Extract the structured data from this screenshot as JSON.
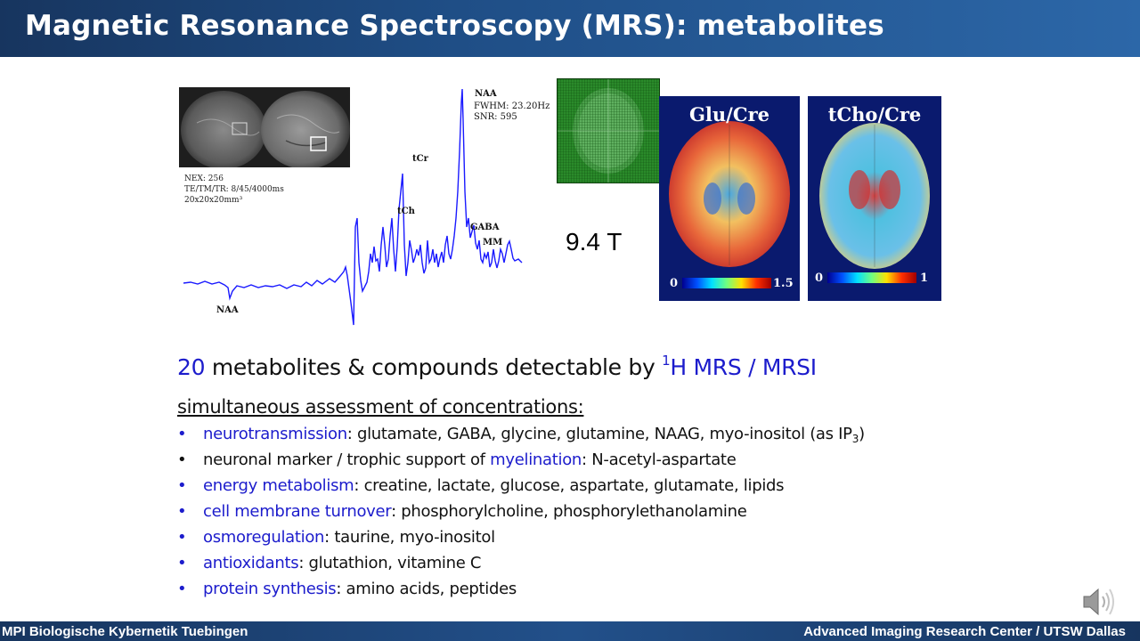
{
  "header": {
    "title": "Magnetic Resonance Spectroscopy (MRS): metabolites"
  },
  "footer": {
    "left": "MPI Biologische Kybernetik Tuebingen",
    "right": "Advanced Imaging Research Center / UTSW Dallas"
  },
  "spectrum": {
    "params": [
      "NEX: 256",
      "TE/TM/TR: 8/45/4000ms",
      "20x20x20mm³"
    ],
    "peak_labels": {
      "naa_top": "NAA",
      "tcr": "tCr",
      "tch": "tCh",
      "gaba": "GABA",
      "mm": "MM",
      "naa_bottom": "NAA"
    },
    "naa_info": [
      "FWHM: 23.20Hz",
      "SNR: 595"
    ]
  },
  "field_strength": "9.4 T",
  "maps": [
    {
      "title": "Glu/Cre",
      "min": "0",
      "max": "1.5"
    },
    {
      "title": "tCho/Cre",
      "min": "0",
      "max": "1"
    }
  ],
  "headline": {
    "count": "20",
    "text": " metabolites & compounds detectable by ",
    "sup": "1",
    "method": "H MRS / MRSI"
  },
  "subheading": "simultaneous assessment of concentrations:",
  "bullets": [
    {
      "term": "neurotransmission",
      "rest": ": glutamate, GABA, glycine, glutamine, NAAG, myo-inositol (as IP",
      "sub": "3",
      "tail": ")",
      "bullet_color": "#1c1ccc"
    },
    {
      "prefix": "neuronal marker / trophic support of ",
      "term": "myelination",
      "rest": ": N-acetyl-aspartate",
      "bullet_color": "#111111"
    },
    {
      "term": "energy metabolism",
      "rest": ": creatine, lactate, glucose, aspartate, glutamate, lipids",
      "bullet_color": "#1c1ccc"
    },
    {
      "term": "cell membrane turnover",
      "rest": ": phosphorylcholine, phosphorylethanolamine",
      "bullet_color": "#1c1ccc"
    },
    {
      "term": "osmoregulation",
      "rest": ": taurine, myo-inositol",
      "bullet_color": "#1c1ccc"
    },
    {
      "term": "antioxidants",
      "rest": ": glutathion, vitamine C",
      "bullet_color": "#1c1ccc"
    },
    {
      "term": "protein synthesis",
      "rest": ": amino acids, peptides",
      "bullet_color": "#1c1ccc"
    }
  ],
  "bullet_glyph": "•",
  "colors": {
    "accent_blue": "#1c1ccc",
    "header_dark": "#17355f",
    "header_light": "#2c67a8",
    "spectrum_line": "#1a1aff"
  },
  "icons": {
    "speaker": "speaker-icon"
  }
}
